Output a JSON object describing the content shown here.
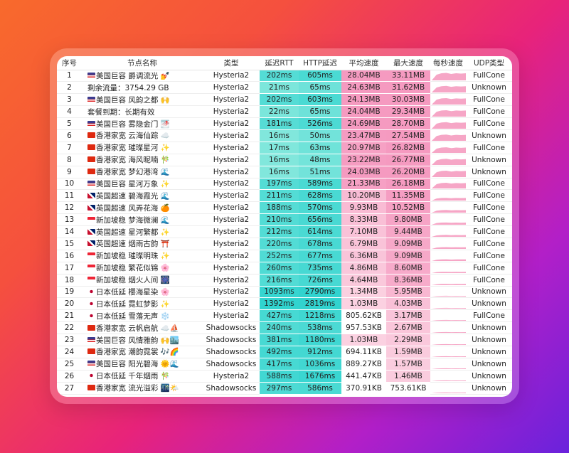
{
  "colors": {
    "rtt_low": "#b2f3e4",
    "rtt_high": "#2fd3cf",
    "speed_high": "#f59ac0",
    "speed_low": "#fbd3e2",
    "spark": "#f6a6c6"
  },
  "columns": [
    "序号",
    "节点名称",
    "类型",
    "延迟RTT",
    "HTTP延迟",
    "平均速度",
    "最大速度",
    "每秒速度",
    "UDP类型"
  ],
  "rows": [
    [
      "1",
      "美国巨容 爵调流光 💅",
      "us",
      "Hysteria2",
      "202ms",
      "605ms",
      "28.04MB",
      "33.11MB",
      "FullCone"
    ],
    [
      "2",
      "剩余流量：3754.29 GB",
      "",
      "Hysteria2",
      "21ms",
      "65ms",
      "24.63MB",
      "31.62MB",
      "Unknown"
    ],
    [
      "3",
      "美国巨容 风韵之都 🙌",
      "us",
      "Hysteria2",
      "202ms",
      "603ms",
      "24.13MB",
      "30.03MB",
      "FullCone"
    ],
    [
      "4",
      "套餐到期：长期有效",
      "",
      "Hysteria2",
      "22ms",
      "65ms",
      "24.04MB",
      "29.34MB",
      "FullCone"
    ],
    [
      "5",
      "美国巨容 雾隐金门 🌁",
      "us",
      "Hysteria2",
      "181ms",
      "526ms",
      "24.69MB",
      "28.70MB",
      "FullCone"
    ],
    [
      "6",
      "香港家宽 云海仙踪 ☁️",
      "hk",
      "Hysteria2",
      "16ms",
      "50ms",
      "23.47MB",
      "27.54MB",
      "Unknown"
    ],
    [
      "7",
      "香港家宽 璀璨星河 ✨",
      "hk",
      "Hysteria2",
      "17ms",
      "63ms",
      "20.97MB",
      "26.82MB",
      "FullCone"
    ],
    [
      "8",
      "香港家宽 海风昵喃 🎋",
      "hk",
      "Hysteria2",
      "16ms",
      "48ms",
      "23.22MB",
      "26.77MB",
      "Unknown"
    ],
    [
      "9",
      "香港家宽 梦幻港湾 🌊",
      "hk",
      "Hysteria2",
      "16ms",
      "51ms",
      "24.03MB",
      "26.20MB",
      "Unknown"
    ],
    [
      "10",
      "美国巨容 星河万象 ✨",
      "us",
      "Hysteria2",
      "197ms",
      "589ms",
      "21.33MB",
      "26.18MB",
      "FullCone"
    ],
    [
      "11",
      "英国超速 碧海霞光 🌊",
      "uk",
      "Hysteria2",
      "211ms",
      "628ms",
      "10.20MB",
      "11.35MB",
      "FullCone"
    ],
    [
      "12",
      "英国超速 风弄花海 🍊",
      "uk",
      "Hysteria2",
      "188ms",
      "570ms",
      "9.93MB",
      "10.52MB",
      "FullCone"
    ],
    [
      "13",
      "新加坡稳 梦海微澜 🌊",
      "sg",
      "Hysteria2",
      "210ms",
      "656ms",
      "8.33MB",
      "9.80MB",
      "FullCone"
    ],
    [
      "14",
      "英国超速 星河繁都 ✨",
      "uk",
      "Hysteria2",
      "212ms",
      "614ms",
      "7.10MB",
      "9.44MB",
      "FullCone"
    ],
    [
      "15",
      "英国超速 烟雨古韵 ⛩️",
      "uk",
      "Hysteria2",
      "220ms",
      "678ms",
      "6.79MB",
      "9.09MB",
      "FullCone"
    ],
    [
      "16",
      "新加坡稳 璀璨明珠 ✨",
      "sg",
      "Hysteria2",
      "252ms",
      "677ms",
      "6.36MB",
      "9.09MB",
      "FullCone"
    ],
    [
      "17",
      "新加坡稳 繁花似锦 🌸",
      "sg",
      "Hysteria2",
      "260ms",
      "735ms",
      "4.86MB",
      "8.60MB",
      "FullCone"
    ],
    [
      "18",
      "新加坡稳 烟火人间 🎆",
      "sg",
      "Hysteria2",
      "216ms",
      "726ms",
      "4.64MB",
      "8.36MB",
      "FullCone"
    ],
    [
      "19",
      "日本低延 樱海星染 🌸",
      "jp",
      "Hysteria2",
      "1093ms",
      "2790ms",
      "1.34MB",
      "5.95MB",
      "Unknown"
    ],
    [
      "20",
      "日本低延 霓虹梦影 ✨",
      "jp",
      "Hysteria2",
      "1392ms",
      "2819ms",
      "1.03MB",
      "4.03MB",
      "Unknown"
    ],
    [
      "21",
      "日本低延 雪落无声 ❄️",
      "jp",
      "Hysteria2",
      "427ms",
      "1218ms",
      "805.62KB",
      "3.17MB",
      "FullCone"
    ],
    [
      "22",
      "香港家宽 云帆启航 ☁️⛵",
      "hk",
      "Shadowsocks",
      "240ms",
      "538ms",
      "957.53KB",
      "2.67MB",
      "Unknown"
    ],
    [
      "23",
      "美国巨容 风情雅韵 🙌🏙️",
      "us",
      "Shadowsocks",
      "381ms",
      "1180ms",
      "1.03MB",
      "2.29MB",
      "Unknown"
    ],
    [
      "24",
      "香港家宽 潮韵霓裳 🎶🌈",
      "hk",
      "Shadowsocks",
      "492ms",
      "912ms",
      "694.11KB",
      "1.59MB",
      "Unknown"
    ],
    [
      "25",
      "美国巨容 阳光碧海 🌞🌊",
      "us",
      "Shadowsocks",
      "417ms",
      "1036ms",
      "889.27KB",
      "1.57MB",
      "Unknown"
    ],
    [
      "26",
      "日本低延 千年烟雨 🎋",
      "jp",
      "Hysteria2",
      "588ms",
      "1676ms",
      "441.47KB",
      "1.46MB",
      "Unknown"
    ],
    [
      "27",
      "香港家宽 流光溢彩 🌃🌤️",
      "hk",
      "Shadowsocks",
      "297ms",
      "586ms",
      "370.91KB",
      "753.61KB",
      "Unknown"
    ]
  ]
}
